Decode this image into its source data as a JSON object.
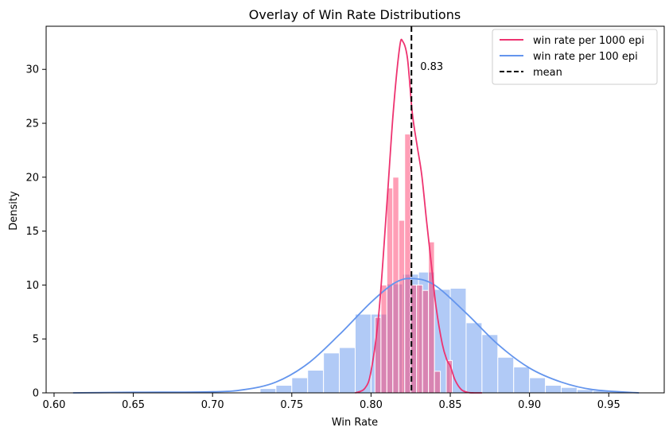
{
  "chart_data": {
    "type": "bar",
    "title": "Overlay of Win Rate Distributions",
    "xlabel": "Win Rate",
    "ylabel": "Density",
    "xlim": [
      0.595,
      0.985
    ],
    "ylim": [
      0,
      34
    ],
    "xticks": [
      0.6,
      0.65,
      0.7,
      0.75,
      0.8,
      0.85,
      0.9,
      0.95
    ],
    "xtick_labels": [
      "0.60",
      "0.65",
      "0.70",
      "0.75",
      "0.80",
      "0.85",
      "0.90",
      "0.95"
    ],
    "yticks": [
      0,
      5,
      10,
      15,
      20,
      25,
      30
    ],
    "ytick_labels": [
      "0",
      "5",
      "10",
      "15",
      "20",
      "25",
      "30"
    ],
    "grid": false,
    "legend_position": "top-right",
    "mean": 0.8255,
    "mean_label": "0.83",
    "histograms": [
      {
        "name": "win rate per 100 epi",
        "color": "#6495ED",
        "bin_width": 0.01,
        "bin_starts": [
          0.61,
          0.62,
          0.63,
          0.64,
          0.65,
          0.66,
          0.67,
          0.68,
          0.69,
          0.7,
          0.71,
          0.72,
          0.73,
          0.74,
          0.75,
          0.76,
          0.77,
          0.78,
          0.79,
          0.8,
          0.81,
          0.82,
          0.83,
          0.84,
          0.85,
          0.86,
          0.87,
          0.88,
          0.89,
          0.9,
          0.91,
          0.92,
          0.93,
          0.94,
          0.95,
          0.96
        ],
        "values": [
          0.05,
          0.0,
          0.0,
          0.0,
          0.0,
          0.0,
          0.0,
          0.0,
          0.0,
          0.0,
          0.0,
          0.0,
          0.4,
          0.7,
          1.4,
          2.1,
          3.7,
          4.2,
          7.3,
          7.3,
          10.1,
          11.0,
          11.2,
          9.6,
          9.7,
          6.5,
          5.4,
          3.3,
          2.4,
          1.4,
          0.7,
          0.5,
          0.3,
          0.2,
          0.1,
          0.05
        ]
      },
      {
        "name": "win rate per 1000 epi",
        "color": "#FF3D6E",
        "bin_width": 0.00375,
        "bin_starts": [
          0.8025,
          0.80625,
          0.81,
          0.81375,
          0.8175,
          0.82125,
          0.825,
          0.82875,
          0.8325,
          0.83625,
          0.84,
          0.84375,
          0.8475,
          0.85125,
          0.855
        ],
        "values": [
          7.0,
          10.0,
          19.0,
          20.0,
          16.0,
          24.0,
          10.0,
          10.0,
          9.5,
          14.0,
          2.0,
          0.0,
          3.0,
          0.0,
          0.0
        ]
      }
    ],
    "kde": [
      {
        "name": "win rate per 100 epi",
        "color": "#6495ED",
        "x": [
          0.612,
          0.65,
          0.7,
          0.72,
          0.74,
          0.76,
          0.78,
          0.8,
          0.815,
          0.826,
          0.84,
          0.86,
          0.88,
          0.9,
          0.92,
          0.94,
          0.969
        ],
        "y": [
          0.0,
          0.05,
          0.1,
          0.3,
          1.0,
          2.7,
          5.4,
          8.4,
          10.2,
          10.6,
          10.0,
          7.4,
          4.5,
          2.3,
          1.0,
          0.3,
          0.0
        ]
      },
      {
        "name": "win rate per 1000 epi",
        "color": "#EE3370",
        "x": [
          0.79,
          0.796,
          0.8,
          0.805,
          0.81,
          0.814,
          0.818,
          0.82,
          0.823,
          0.826,
          0.829,
          0.832,
          0.835,
          0.838,
          0.841,
          0.845,
          0.848,
          0.85,
          0.853,
          0.857,
          0.861,
          0.865,
          0.87
        ],
        "y": [
          0.0,
          0.4,
          2.0,
          7.5,
          17.5,
          26.0,
          32.0,
          32.6,
          31.0,
          26.0,
          23.0,
          20.2,
          16.0,
          12.0,
          8.0,
          4.5,
          3.0,
          2.5,
          1.2,
          0.3,
          0.05,
          0.0,
          0.0
        ]
      }
    ],
    "legend": [
      {
        "label": "win rate per 1000 epi",
        "style": "solid",
        "color": "#EE3370"
      },
      {
        "label": "win rate per 100 epi",
        "style": "solid",
        "color": "#6495ED"
      },
      {
        "label": "mean",
        "style": "dashed",
        "color": "#000000"
      }
    ]
  }
}
